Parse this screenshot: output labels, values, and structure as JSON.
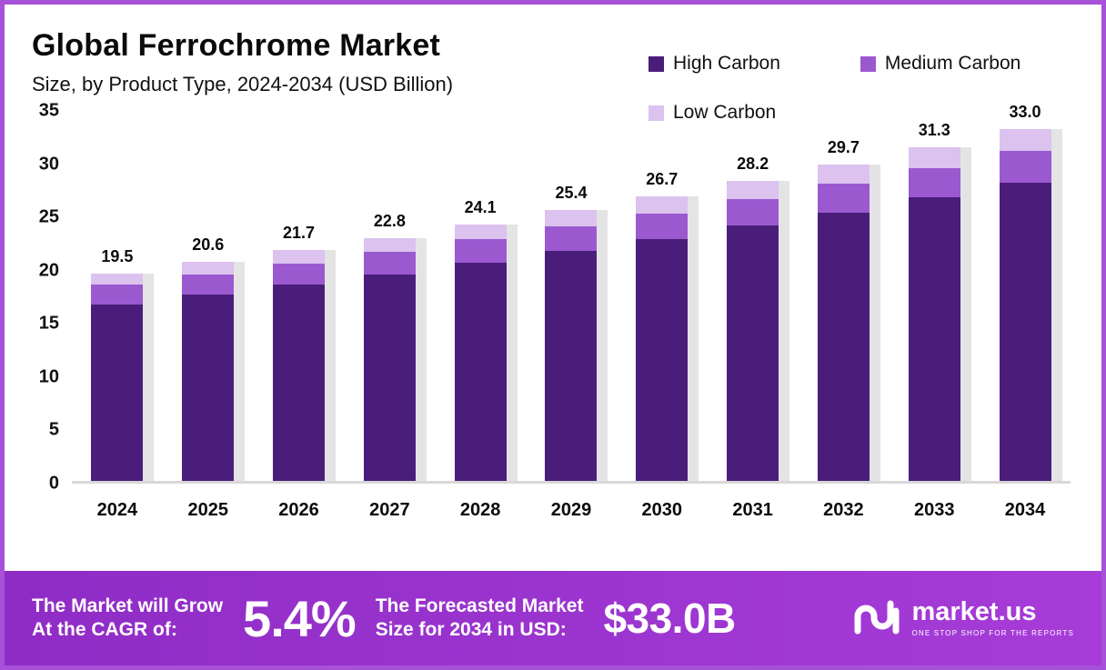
{
  "header": {
    "title": "Global Ferrochrome Market",
    "subtitle": "Size, by Product Type, 2024-2034 (USD Billion)"
  },
  "legend": {
    "items": [
      {
        "label": "High Carbon",
        "color": "#4a1d7a"
      },
      {
        "label": "Medium Carbon",
        "color": "#9b59d0"
      },
      {
        "label": "Low Carbon",
        "color": "#dcc2ee"
      }
    ]
  },
  "chart_data": {
    "type": "bar",
    "stacked": true,
    "title": "Global Ferrochrome Market Size, by Product Type, 2024-2034 (USD Billion)",
    "xlabel": "",
    "ylabel": "",
    "ylim": [
      0,
      35
    ],
    "y_ticks": [
      0,
      5,
      10,
      15,
      20,
      25,
      30,
      35
    ],
    "grid": false,
    "legend_position": "top-right",
    "categories": [
      "2024",
      "2025",
      "2026",
      "2027",
      "2028",
      "2029",
      "2030",
      "2031",
      "2032",
      "2033",
      "2034"
    ],
    "series": [
      {
        "name": "High Carbon",
        "color": "#4a1d7a",
        "values": [
          16.6,
          17.5,
          18.4,
          19.4,
          20.5,
          21.6,
          22.7,
          24.0,
          25.2,
          26.6,
          28.0
        ]
      },
      {
        "name": "Medium Carbon",
        "color": "#9b59d0",
        "values": [
          1.8,
          1.9,
          2.0,
          2.1,
          2.2,
          2.3,
          2.4,
          2.5,
          2.7,
          2.8,
          3.0
        ]
      },
      {
        "name": "Low Carbon",
        "color": "#dcc2ee",
        "values": [
          1.1,
          1.2,
          1.3,
          1.3,
          1.4,
          1.5,
          1.6,
          1.7,
          1.8,
          1.9,
          2.0
        ]
      }
    ],
    "totals": [
      19.5,
      20.6,
      21.7,
      22.8,
      24.1,
      25.4,
      26.7,
      28.2,
      29.7,
      31.3,
      33.0
    ]
  },
  "banner": {
    "cagr_label_line1": "The Market will Grow",
    "cagr_label_line2": "At the CAGR of:",
    "cagr_value": "5.4%",
    "forecast_label_line1": "The Forecasted Market",
    "forecast_label_line2": "Size for 2034 in USD:",
    "forecast_value": "$33.0B",
    "brand": "market.us",
    "brand_tagline": "ONE STOP SHOP FOR THE REPORTS"
  }
}
